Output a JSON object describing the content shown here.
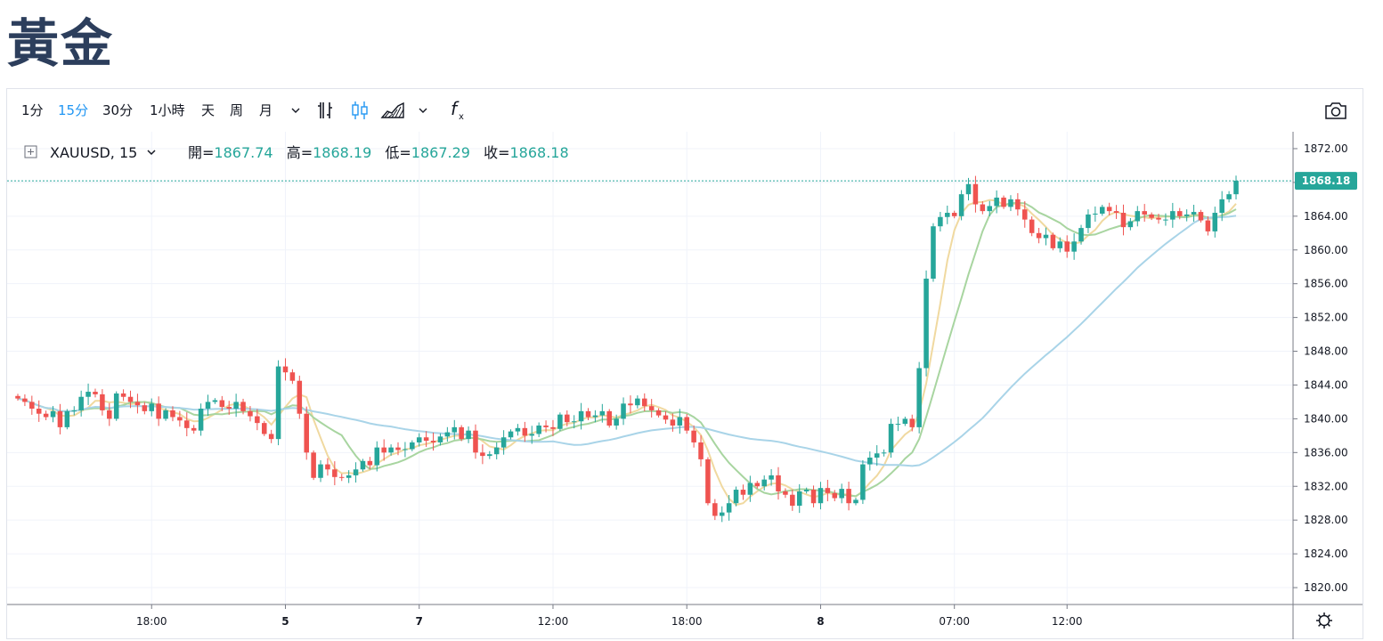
{
  "page": {
    "title": "黃金"
  },
  "toolbar": {
    "intervals": [
      {
        "label": "1分",
        "active": false
      },
      {
        "label": "15分",
        "active": true
      },
      {
        "label": "30分",
        "active": false
      },
      {
        "label": "1小時",
        "active": false
      },
      {
        "label": "天",
        "active": false
      },
      {
        "label": "周",
        "active": false
      },
      {
        "label": "月",
        "active": false
      }
    ],
    "icons": [
      "chevron-down-icon",
      "bar-chart-icon",
      "candlestick-icon",
      "area-chart-icon",
      "chevron-down-icon",
      "indicators-icon",
      "camera-icon",
      "settings-gear-icon"
    ]
  },
  "legend": {
    "symbol": "XAUUSD, 15",
    "open_label": "開=",
    "open": "1867.74",
    "high_label": "高=",
    "high": "1868.19",
    "low_label": "低=",
    "low": "1867.29",
    "close_label": "收=",
    "close": "1868.18"
  },
  "colors": {
    "up": "#26a69a",
    "down": "#ef5350",
    "ma_fast": "#f0d9a0",
    "ma_mid": "#a8d5a0",
    "ma_slow": "#a9d4e8",
    "price_tag": "#26a69a"
  },
  "chart_data": {
    "type": "candlestick",
    "ylim": [
      1818,
      1874
    ],
    "y_ticks": [
      "1872.00",
      "1868.00",
      "1864.00",
      "1860.00",
      "1856.00",
      "1852.00",
      "1848.00",
      "1844.00",
      "1840.00",
      "1836.00",
      "1832.00",
      "1828.00",
      "1824.00",
      "1820.00"
    ],
    "x_ticks": [
      {
        "label": "18:00",
        "index": 19,
        "bold": false
      },
      {
        "label": "5",
        "index": 38,
        "bold": true
      },
      {
        "label": "7",
        "index": 57,
        "bold": true
      },
      {
        "label": "12:00",
        "index": 76,
        "bold": false
      },
      {
        "label": "18:00",
        "index": 95,
        "bold": false
      },
      {
        "label": "8",
        "index": 114,
        "bold": true
      },
      {
        "label": "07:00",
        "index": 133,
        "bold": false
      },
      {
        "label": "12:00",
        "index": 149,
        "bold": false
      }
    ],
    "last_price": "1868.18",
    "close": [
      1842.4,
      1842.0,
      1841.2,
      1840.6,
      1840.2,
      1840.9,
      1839.0,
      1840.9,
      1841.0,
      1842.6,
      1843.2,
      1842.9,
      1841.0,
      1840.0,
      1843.0,
      1842.6,
      1842.0,
      1841.6,
      1840.9,
      1841.8,
      1840.0,
      1841.0,
      1840.2,
      1839.8,
      1838.9,
      1838.6,
      1841.2,
      1842.0,
      1842.2,
      1841.4,
      1841.2,
      1842.0,
      1840.9,
      1840.3,
      1839.5,
      1838.2,
      1837.6,
      1846.2,
      1845.5,
      1844.5,
      1840.6,
      1836.0,
      1833.0,
      1834.6,
      1834.0,
      1833.1,
      1833.0,
      1833.3,
      1834.0,
      1835.0,
      1834.5,
      1836.6,
      1836.0,
      1836.6,
      1836.3,
      1836.4,
      1837.2,
      1837.8,
      1837.4,
      1837.2,
      1837.9,
      1838.4,
      1839.0,
      1837.6,
      1838.6,
      1836.0,
      1835.6,
      1835.8,
      1836.6,
      1837.8,
      1838.5,
      1838.9,
      1838.0,
      1838.2,
      1839.2,
      1839.0,
      1838.8,
      1840.5,
      1839.6,
      1839.7,
      1840.9,
      1840.2,
      1840.4,
      1840.9,
      1839.2,
      1840.0,
      1841.8,
      1841.6,
      1842.4,
      1841.5,
      1841.0,
      1840.4,
      1839.9,
      1839.2,
      1840.2,
      1838.6,
      1837.2,
      1835.2,
      1830.0,
      1828.5,
      1828.9,
      1830.0,
      1831.6,
      1831.0,
      1832.4,
      1832.0,
      1832.8,
      1833.3,
      1831.4,
      1831.0,
      1829.7,
      1831.4,
      1831.6,
      1830.0,
      1831.8,
      1831.2,
      1830.6,
      1831.7,
      1830.0,
      1830.4,
      1834.6,
      1835.4,
      1835.9,
      1836.0,
      1839.4,
      1839.4,
      1840.0,
      1839.0,
      1846.0,
      1856.6,
      1862.8,
      1863.9,
      1864.4,
      1864.0,
      1866.6,
      1867.8,
      1865.4,
      1864.6,
      1865.2,
      1866.2,
      1865.1,
      1866.0,
      1864.8,
      1863.6,
      1862.0,
      1861.4,
      1861.8,
      1860.2,
      1861.0,
      1859.8,
      1861.0,
      1862.6,
      1864.2,
      1864.3,
      1865.1,
      1864.6,
      1864.4,
      1862.7,
      1863.4,
      1864.6,
      1864.2,
      1863.8,
      1863.6,
      1863.6,
      1864.6,
      1864.0,
      1864.2,
      1864.5,
      1863.5,
      1862.2,
      1864.4,
      1866.0,
      1866.6,
      1868.2
    ]
  }
}
